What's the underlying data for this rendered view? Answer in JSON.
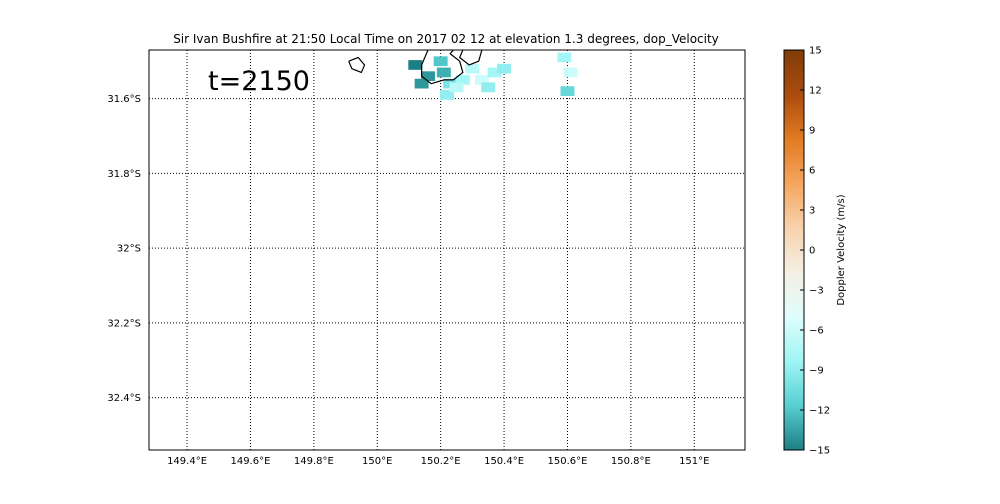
{
  "chart_data": {
    "type": "heatmap",
    "title": "Sir Ivan Bushfire at 21:50 Local Time on 2017 02 12 at elevation 1.3 degrees, dop_Velocity",
    "annotation": "t=2150",
    "xlabel": "",
    "ylabel": "",
    "xlim": [
      149.28,
      151.16
    ],
    "ylim": [
      -32.54,
      -31.47
    ],
    "x_ticks": [
      149.4,
      149.6,
      149.8,
      150.0,
      150.2,
      150.4,
      150.6,
      150.8,
      151.0
    ],
    "x_tick_labels": [
      "149.4°E",
      "149.6°E",
      "149.8°E",
      "150°E",
      "150.2°E",
      "150.4°E",
      "150.6°E",
      "150.8°E",
      "151°E"
    ],
    "y_ticks": [
      -31.6,
      -31.8,
      -32.0,
      -32.2,
      -32.4
    ],
    "y_tick_labels": [
      "31.6°S",
      "31.8°S",
      "32°S",
      "32.2°S",
      "32.4°S"
    ],
    "grid": true,
    "grid_style": "dotted",
    "colorbar": {
      "label": "Doppler Velocity (m/s)",
      "range": [
        -15,
        15
      ],
      "ticks": [
        15,
        12,
        9,
        6,
        3,
        0,
        -3,
        -6,
        -9,
        -12,
        -15
      ],
      "tick_labels": [
        "15",
        "12",
        "9",
        "6",
        "3",
        "0",
        "−3",
        "−6",
        "−9",
        "−12",
        "−15"
      ],
      "colors": [
        "#1c7f84",
        "#58cfd1",
        "#9ff5f5",
        "#dffdfd",
        "#f5efe3",
        "#f7d2ad",
        "#f5a55e",
        "#e27a22",
        "#aa4c0e",
        "#803c08"
      ]
    },
    "velocity_patches": [
      {
        "lon": 150.2,
        "lat": -31.5,
        "velocity": -12
      },
      {
        "lon": 150.21,
        "lat": -31.53,
        "velocity": -13
      },
      {
        "lon": 150.16,
        "lat": -31.54,
        "velocity": -14
      },
      {
        "lon": 150.23,
        "lat": -31.56,
        "velocity": -10
      },
      {
        "lon": 150.27,
        "lat": -31.55,
        "velocity": -8
      },
      {
        "lon": 150.3,
        "lat": -31.52,
        "velocity": -7
      },
      {
        "lon": 150.33,
        "lat": -31.55,
        "velocity": -6
      },
      {
        "lon": 150.37,
        "lat": -31.53,
        "velocity": -8
      },
      {
        "lon": 150.4,
        "lat": -31.52,
        "velocity": -9
      },
      {
        "lon": 150.12,
        "lat": -31.51,
        "velocity": -15
      },
      {
        "lon": 150.14,
        "lat": -31.56,
        "velocity": -14
      },
      {
        "lon": 150.22,
        "lat": -31.59,
        "velocity": -9
      },
      {
        "lon": 150.25,
        "lat": -31.57,
        "velocity": -7
      },
      {
        "lon": 150.35,
        "lat": -31.57,
        "velocity": -9
      },
      {
        "lon": 150.59,
        "lat": -31.49,
        "velocity": -8
      },
      {
        "lon": 150.61,
        "lat": -31.53,
        "velocity": -6
      },
      {
        "lon": 150.6,
        "lat": -31.58,
        "velocity": -11
      }
    ],
    "contours": [
      {
        "points": [
          [
            149.91,
            -31.5
          ],
          [
            149.94,
            -31.49
          ],
          [
            149.96,
            -31.51
          ],
          [
            149.95,
            -31.53
          ],
          [
            149.92,
            -31.52
          ],
          [
            149.91,
            -31.5
          ]
        ]
      },
      {
        "points": [
          [
            150.16,
            -31.47
          ],
          [
            150.14,
            -31.51
          ],
          [
            150.14,
            -31.54
          ],
          [
            150.17,
            -31.56
          ],
          [
            150.21,
            -31.55
          ],
          [
            150.24,
            -31.55
          ],
          [
            150.27,
            -31.53
          ],
          [
            150.26,
            -31.5
          ],
          [
            150.23,
            -31.48
          ],
          [
            150.24,
            -31.47
          ]
        ]
      },
      {
        "points": [
          [
            150.27,
            -31.47
          ],
          [
            150.26,
            -31.49
          ],
          [
            150.29,
            -31.51
          ],
          [
            150.32,
            -31.5
          ],
          [
            150.33,
            -31.47
          ]
        ]
      }
    ]
  }
}
